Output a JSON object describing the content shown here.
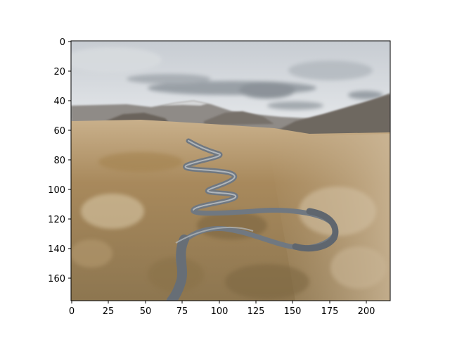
{
  "figure": {
    "image_subject": "aerial photograph of a winding river through a brown valley with mountains under a cloudy sky",
    "image_size": {
      "width": 217,
      "height": 176
    },
    "x_ticks": [
      "0",
      "25",
      "50",
      "75",
      "100",
      "125",
      "150",
      "175",
      "200"
    ],
    "y_ticks": [
      "0",
      "20",
      "40",
      "60",
      "80",
      "100",
      "120",
      "140",
      "160"
    ],
    "colors": {
      "sky_top": "#c9ced3",
      "sky_bottom": "#dfe3e6",
      "clouds": "#8e959c",
      "mountains_far": "#8f8c88",
      "mountains_near": "#6b665f",
      "valley_light": "#c6ab83",
      "valley_dark": "#8a6f45",
      "river": "#6f7780",
      "river_highlight": "#b8bcc0",
      "axis": "#000000"
    }
  }
}
